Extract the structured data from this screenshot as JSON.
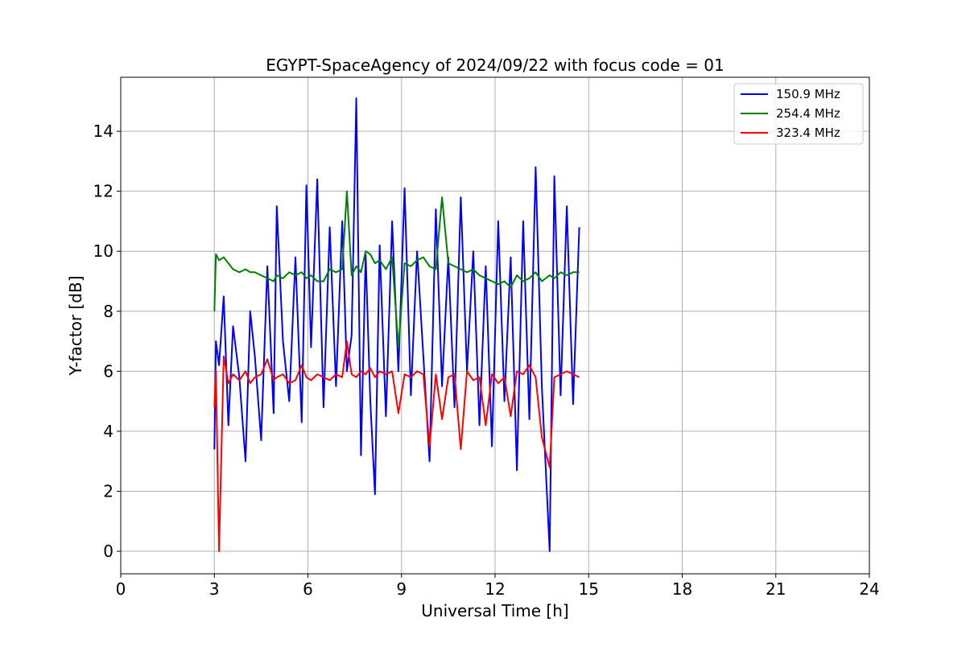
{
  "chart_data": {
    "type": "line",
    "title": "EGYPT-SpaceAgency of 2024/09/22 with focus code = 01",
    "xlabel": "Universal Time [h]",
    "ylabel": "Y-factor [dB]",
    "xlim": [
      0,
      24
    ],
    "ylim": [
      -0.75,
      15.8
    ],
    "x_ticks": [
      0,
      3,
      6,
      9,
      12,
      15,
      18,
      21,
      24
    ],
    "x_tick_labels": [
      "0",
      "3",
      "6",
      "9",
      "12",
      "15",
      "18",
      "21",
      "24"
    ],
    "y_ticks": [
      0,
      2,
      4,
      6,
      8,
      10,
      12,
      14
    ],
    "y_tick_labels": [
      "0",
      "2",
      "4",
      "6",
      "8",
      "10",
      "12",
      "14"
    ],
    "grid": true,
    "legend_position": "top-right",
    "series": [
      {
        "name": " 150.9 MHz",
        "color": "#0000ff",
        "x": [
          3.0,
          3.05,
          3.15,
          3.3,
          3.45,
          3.6,
          3.8,
          4.0,
          4.15,
          4.3,
          4.5,
          4.7,
          4.9,
          5.0,
          5.2,
          5.4,
          5.6,
          5.8,
          5.95,
          6.1,
          6.3,
          6.5,
          6.7,
          6.9,
          7.1,
          7.25,
          7.4,
          7.55,
          7.7,
          7.85,
          8.0,
          8.15,
          8.3,
          8.5,
          8.7,
          8.9,
          9.1,
          9.3,
          9.5,
          9.7,
          9.9,
          10.1,
          10.3,
          10.5,
          10.7,
          10.9,
          11.1,
          11.3,
          11.5,
          11.7,
          11.9,
          12.1,
          12.3,
          12.5,
          12.7,
          12.9,
          13.1,
          13.3,
          13.5,
          13.75,
          13.9,
          14.1,
          14.3,
          14.5,
          14.7
        ],
        "y": [
          3.4,
          7.0,
          6.2,
          8.5,
          4.2,
          7.5,
          5.8,
          3.0,
          8.0,
          6.5,
          3.7,
          9.5,
          4.6,
          11.5,
          7.0,
          5.0,
          9.8,
          4.3,
          12.2,
          6.8,
          12.4,
          4.8,
          10.8,
          5.5,
          11.0,
          6.0,
          7.2,
          15.1,
          3.2,
          9.9,
          5.0,
          1.9,
          10.2,
          4.5,
          11.0,
          6.0,
          12.1,
          5.2,
          10.0,
          6.5,
          3.0,
          11.4,
          5.5,
          9.8,
          4.8,
          11.8,
          6.0,
          10.0,
          4.2,
          9.5,
          3.5,
          11.0,
          5.0,
          9.8,
          2.7,
          11.0,
          4.4,
          12.8,
          5.5,
          0.0,
          12.5,
          5.2,
          11.5,
          4.9,
          10.8
        ]
      },
      {
        "name": " 254.4 MHz",
        "color": "#008000",
        "x": [
          3.0,
          3.05,
          3.15,
          3.3,
          3.45,
          3.6,
          3.8,
          4.0,
          4.15,
          4.3,
          4.5,
          4.7,
          4.9,
          5.0,
          5.2,
          5.4,
          5.6,
          5.8,
          5.95,
          6.1,
          6.3,
          6.5,
          6.7,
          6.9,
          7.1,
          7.25,
          7.4,
          7.55,
          7.7,
          7.85,
          8.0,
          8.15,
          8.3,
          8.5,
          8.7,
          8.9,
          9.1,
          9.3,
          9.5,
          9.7,
          9.9,
          10.1,
          10.3,
          10.5,
          10.7,
          10.9,
          11.1,
          11.3,
          11.5,
          11.7,
          11.9,
          12.1,
          12.3,
          12.5,
          12.7,
          12.9,
          13.1,
          13.3,
          13.5,
          13.75,
          13.9,
          14.1,
          14.3,
          14.5,
          14.7
        ],
        "y": [
          8.0,
          9.9,
          9.7,
          9.8,
          9.6,
          9.4,
          9.3,
          9.4,
          9.3,
          9.3,
          9.2,
          9.1,
          9.0,
          9.2,
          9.1,
          9.3,
          9.2,
          9.3,
          9.1,
          9.2,
          9.0,
          9.0,
          9.4,
          9.3,
          9.4,
          12.0,
          9.2,
          9.5,
          9.3,
          10.0,
          9.9,
          9.6,
          9.7,
          9.4,
          9.8,
          6.8,
          9.6,
          9.5,
          9.7,
          9.8,
          9.5,
          9.4,
          11.8,
          9.6,
          9.5,
          9.4,
          9.3,
          9.4,
          9.2,
          9.1,
          9.0,
          8.9,
          9.0,
          8.8,
          9.2,
          9.0,
          9.1,
          9.3,
          9.0,
          9.2,
          9.1,
          9.3,
          9.2,
          9.3,
          9.3
        ]
      },
      {
        "name": " 323.4 MHz",
        "color": "#ff0000",
        "x": [
          3.0,
          3.05,
          3.15,
          3.3,
          3.45,
          3.6,
          3.8,
          4.0,
          4.15,
          4.3,
          4.5,
          4.7,
          4.9,
          5.0,
          5.2,
          5.4,
          5.6,
          5.8,
          5.95,
          6.1,
          6.3,
          6.5,
          6.7,
          6.9,
          7.1,
          7.25,
          7.4,
          7.55,
          7.7,
          7.85,
          8.0,
          8.15,
          8.3,
          8.5,
          8.7,
          8.9,
          9.1,
          9.3,
          9.5,
          9.7,
          9.9,
          10.1,
          10.3,
          10.5,
          10.7,
          10.9,
          11.1,
          11.3,
          11.5,
          11.7,
          11.9,
          12.1,
          12.3,
          12.5,
          12.7,
          12.9,
          13.1,
          13.3,
          13.5,
          13.75,
          13.9,
          14.1,
          14.3,
          14.5,
          14.7
        ],
        "y": [
          4.8,
          6.0,
          0.0,
          6.5,
          5.6,
          5.9,
          5.7,
          6.0,
          5.6,
          5.8,
          5.9,
          6.4,
          5.7,
          5.8,
          5.9,
          5.6,
          5.7,
          6.2,
          5.8,
          5.7,
          5.9,
          5.8,
          5.7,
          5.9,
          5.8,
          7.0,
          5.9,
          5.8,
          6.0,
          5.9,
          6.1,
          5.8,
          6.0,
          5.9,
          6.0,
          4.6,
          5.9,
          5.8,
          6.0,
          5.9,
          3.5,
          5.9,
          4.4,
          5.8,
          5.9,
          3.4,
          6.0,
          5.7,
          5.8,
          4.2,
          5.9,
          5.6,
          5.8,
          4.5,
          6.0,
          5.9,
          6.2,
          5.8,
          3.8,
          2.8,
          5.8,
          5.9,
          6.0,
          5.9,
          5.8
        ]
      }
    ]
  }
}
